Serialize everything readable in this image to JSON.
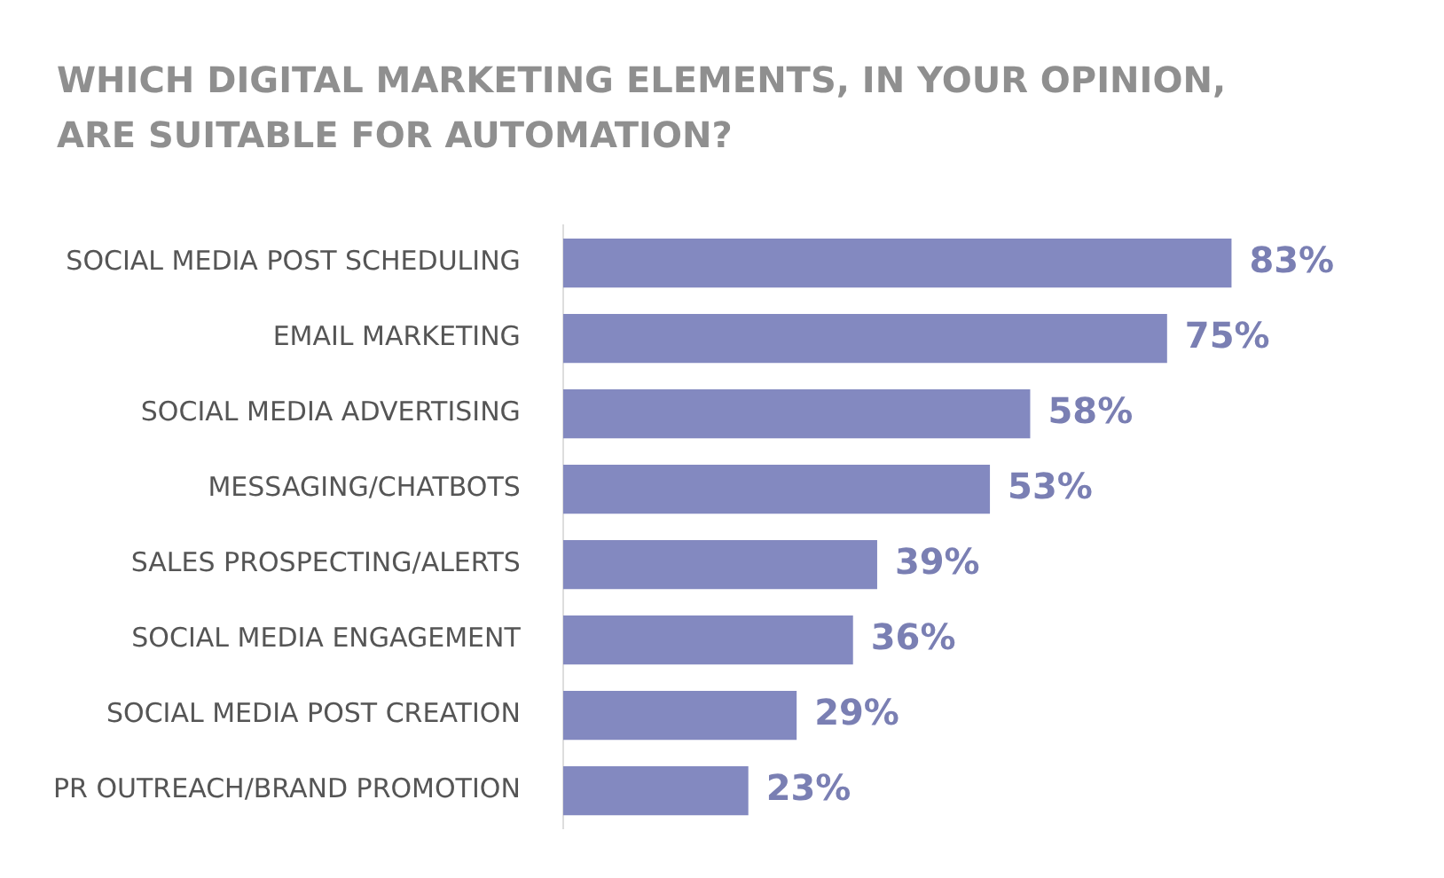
{
  "chart_data": {
    "type": "bar",
    "orientation": "horizontal",
    "title": "WHICH DIGITAL MARKETING ELEMENTS, IN YOUR OPINION,\nARE SUITABLE FOR AUTOMATION?",
    "categories": [
      "SOCIAL MEDIA POST SCHEDULING",
      "EMAIL MARKETING",
      "SOCIAL MEDIA ADVERTISING",
      "MESSAGING/CHATBOTS",
      "SALES PROSPECTING/ALERTS",
      "SOCIAL MEDIA ENGAGEMENT",
      "SOCIAL MEDIA POST CREATION",
      "PR OUTREACH/BRAND PROMOTION"
    ],
    "values": [
      83,
      75,
      58,
      53,
      39,
      36,
      29,
      23
    ],
    "value_labels": [
      "83%",
      "75%",
      "58%",
      "53%",
      "39%",
      "36%",
      "29%",
      "23%"
    ],
    "color": "#8389c0",
    "legend": false
  }
}
